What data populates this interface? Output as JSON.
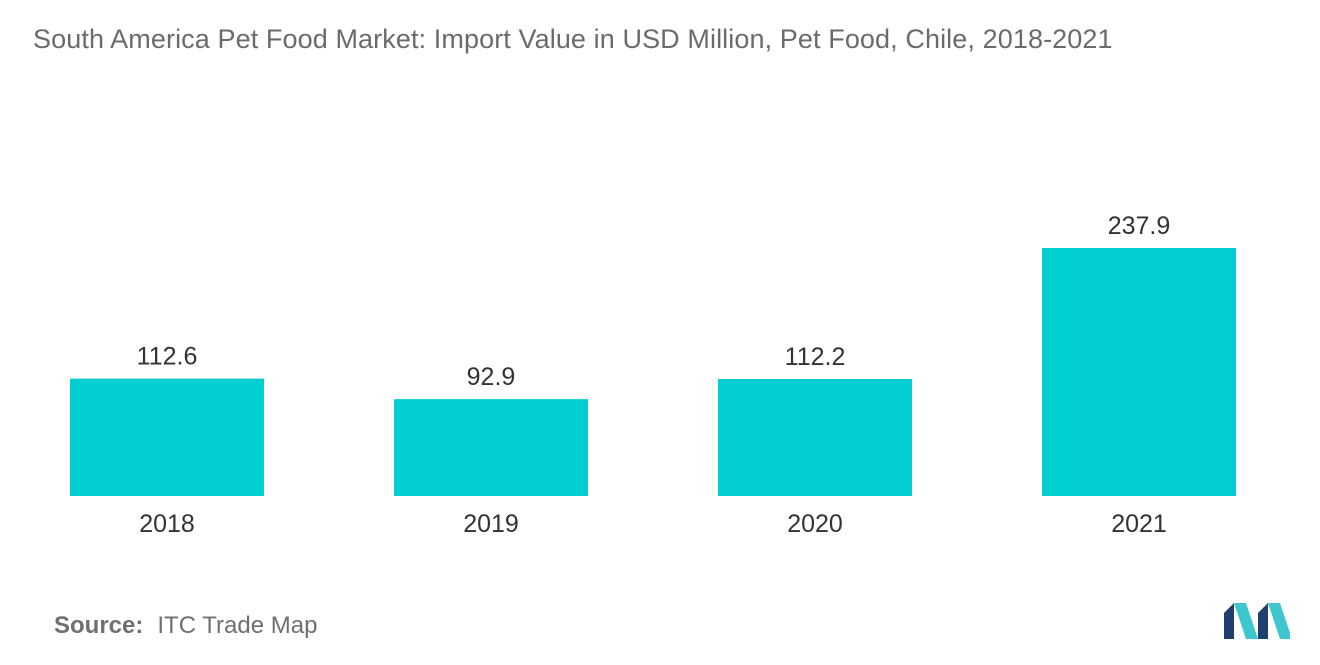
{
  "title": "South America Pet Food Market: Import Value in USD Million, Pet Food, Chile, 2018-2021",
  "source_label": "Source:",
  "source_text": "ITC Trade Map",
  "colors": {
    "bar": "#00ced1",
    "label": "#333333",
    "title": "#6b6b6b",
    "logo_dark": "#1f3f6e",
    "logo_light": "#3ec6cf"
  },
  "chart_data": {
    "type": "bar",
    "categories": [
      "2018",
      "2019",
      "2020",
      "2021"
    ],
    "values": [
      112.6,
      92.9,
      112.2,
      237.9
    ],
    "value_labels": [
      "112.6",
      "92.9",
      "112.2",
      "237.9"
    ],
    "title": "South America Pet Food Market: Import Value in USD Million, Pet Food, Chile, 2018-2021",
    "xlabel": "",
    "ylabel": "",
    "grid": false,
    "legend": "none"
  }
}
